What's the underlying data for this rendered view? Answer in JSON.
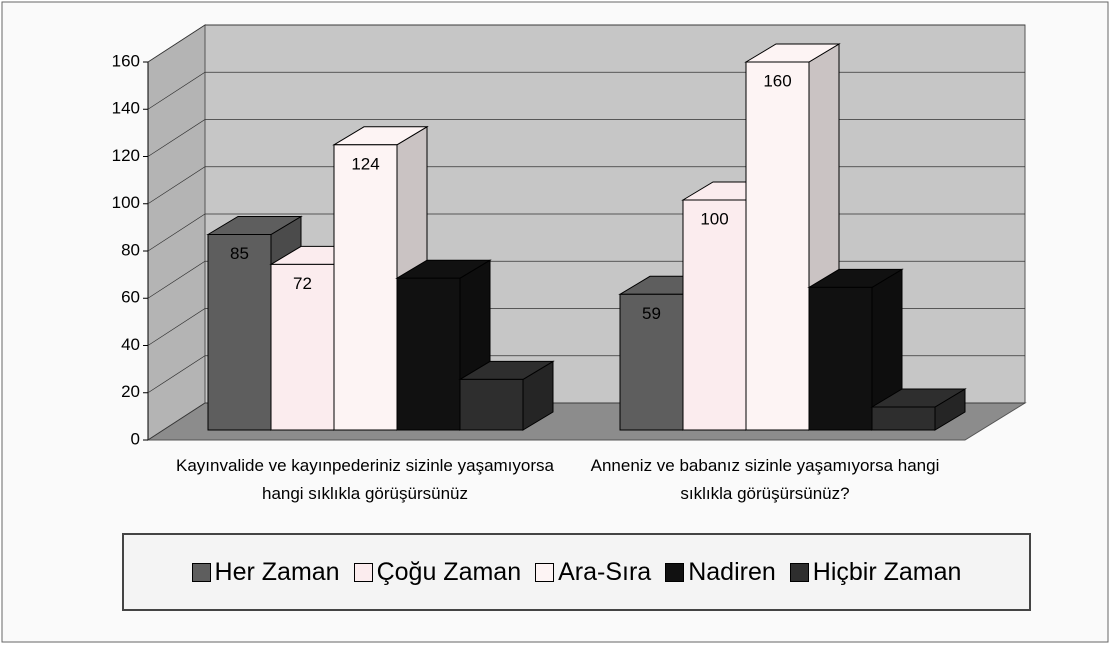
{
  "chart_data": {
    "type": "bar3d",
    "categories": [
      "Kayınvalide ve kayınpederiniz sizinle yaşamıyorsa hangi sıklıkla görüşürsünüz",
      "Anneniz ve babanız sizinle yaşamıyorsa hangi sıklıkla görüşürsünüz?"
    ],
    "series": [
      {
        "name": "Her Zaman",
        "color": "#5e5e5e",
        "values": [
          85,
          59
        ],
        "show_labels": true
      },
      {
        "name": "Çoğu Zaman",
        "color": "#fbecee",
        "values": [
          72,
          100
        ],
        "show_labels": true
      },
      {
        "name": "Ara-Sıra",
        "color": "#fdf4f4",
        "values": [
          124,
          160
        ],
        "show_labels": true
      },
      {
        "name": "Nadiren",
        "color": "#111111",
        "values": [
          66,
          62
        ],
        "show_labels": false
      },
      {
        "name": "Hiçbir Zaman",
        "color": "#2e2e2e",
        "values": [
          22,
          10
        ],
        "show_labels": false
      }
    ],
    "ylim": [
      0,
      160
    ],
    "yticks": [
      0,
      20,
      40,
      60,
      80,
      100,
      120,
      140,
      160
    ],
    "grid": true
  }
}
